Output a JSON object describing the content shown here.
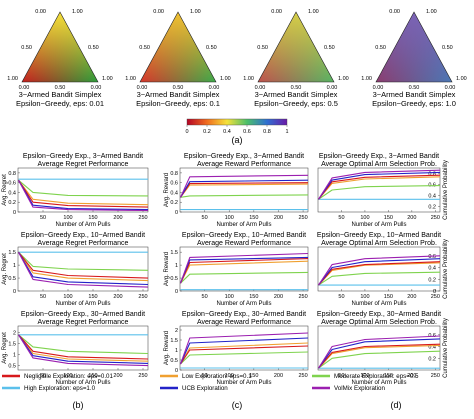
{
  "colors": {
    "eps_001": "#d7191c",
    "eps_01": "#f0a030",
    "eps_05": "#7fd34e",
    "eps_10": "#5bc0eb",
    "ucb": "#2323c8",
    "volmix": "#9b1fb0"
  },
  "simplex_panel": {
    "corner_labels": {
      "top_a": "0.00",
      "top_b": "1.00",
      "left_a": "1.00",
      "left_b": "0.00",
      "right_a": "0.00",
      "right_b": "1.00"
    },
    "tick_labels": [
      "0.50",
      "0.50",
      "0.50"
    ],
    "simplices": [
      {
        "title": "3−Armed Bandit Simplex",
        "subtitle": "Epsilon−Greedy, eps: 0.01",
        "colors": [
          "#f7e13a",
          "#c81e1e",
          "#2a9d3a"
        ]
      },
      {
        "title": "3−Armed Bandit Simplex",
        "subtitle": "Epsilon−Greedy, eps: 0.1",
        "colors": [
          "#f1c232",
          "#d9342b",
          "#3aaa4a"
        ]
      },
      {
        "title": "3−Armed Bandit Simplex",
        "subtitle": "Epsilon−Greedy, eps: 0.5",
        "colors": [
          "#d6cf48",
          "#c0504d",
          "#56b463"
        ]
      },
      {
        "title": "3−Armed Bandit Simplex",
        "subtitle": "Epsilon−Greedy, eps: 1.0",
        "colors": [
          "#7b63b6",
          "#8c3c6e",
          "#4a78b4"
        ]
      }
    ],
    "colorbar_ticks": [
      "0",
      "0.2",
      "0.4",
      "0.6",
      "0.8",
      "1"
    ],
    "panel_label": "(a)"
  },
  "panel_labels": {
    "b": "(b)",
    "c": "(c)",
    "d": "(d)"
  },
  "legend": [
    {
      "label": "Negligible Exploration: eps=0.01",
      "color_key": "eps_001"
    },
    {
      "label": "Low Exploration: eps=0.1",
      "color_key": "eps_01"
    },
    {
      "label": "Moderate Exploration: eps=0.5",
      "color_key": "eps_05"
    },
    {
      "label": "High Exploration: eps=1.0",
      "color_key": "eps_10"
    },
    {
      "label": "UCB Exploration",
      "color_key": "ucb"
    },
    {
      "label": "VolMix Exploration",
      "color_key": "volmix"
    }
  ],
  "chart_data": [
    {
      "type": "line",
      "title": "Epsilon−Greedy Exp., 3−Armed Bandit",
      "subtitle": "Average Regret Performance",
      "xlabel": "Number of Arm Pulls",
      "ylabel": "Avg. Regret",
      "xlim": [
        0,
        260
      ],
      "ylim": [
        0,
        0.9
      ],
      "xticks": [
        "50",
        "100",
        "150",
        "200",
        "250"
      ],
      "yticks": [
        "0",
        "0.2",
        "0.4",
        "0.6",
        "0.8"
      ],
      "series": [
        {
          "color_key": "eps_10",
          "x": [
            1,
            260
          ],
          "y": [
            0.67,
            0.67
          ]
        },
        {
          "color_key": "eps_05",
          "x": [
            1,
            30,
            100,
            260
          ],
          "y": [
            0.65,
            0.4,
            0.34,
            0.33
          ]
        },
        {
          "color_key": "eps_01",
          "x": [
            1,
            30,
            100,
            260
          ],
          "y": [
            0.65,
            0.26,
            0.18,
            0.15
          ]
        },
        {
          "color_key": "eps_001",
          "x": [
            1,
            30,
            100,
            260
          ],
          "y": [
            0.65,
            0.2,
            0.13,
            0.1
          ]
        },
        {
          "color_key": "ucb",
          "x": [
            1,
            30,
            100,
            260
          ],
          "y": [
            0.65,
            0.14,
            0.07,
            0.05
          ]
        },
        {
          "color_key": "volmix",
          "x": [
            1,
            30,
            100,
            260
          ],
          "y": [
            0.65,
            0.1,
            0.05,
            0.03
          ]
        }
      ]
    },
    {
      "type": "line",
      "title": "Epsilon−Greedy Exp., 3−Armed Bandit",
      "subtitle": "Average Reward Performance",
      "xlabel": "Number of Arm Pulls",
      "ylabel": "Avg. Reward",
      "xlim": [
        0,
        260
      ],
      "ylim": [
        0,
        0.9
      ],
      "xticks": [
        "50",
        "100",
        "150",
        "200",
        "250"
      ],
      "yticks": [
        "0",
        "0.2",
        "0.4",
        "0.6",
        "0.8"
      ],
      "series": [
        {
          "color_key": "eps_10",
          "x": [
            1,
            260
          ],
          "y": [
            0.05,
            0.05
          ]
        },
        {
          "color_key": "eps_05",
          "x": [
            1,
            20,
            260
          ],
          "y": [
            0.3,
            0.33,
            0.35
          ]
        },
        {
          "color_key": "eps_01",
          "x": [
            1,
            20,
            260
          ],
          "y": [
            0.3,
            0.55,
            0.57
          ]
        },
        {
          "color_key": "eps_001",
          "x": [
            1,
            20,
            260
          ],
          "y": [
            0.3,
            0.58,
            0.6
          ]
        },
        {
          "color_key": "ucb",
          "x": [
            1,
            20,
            260
          ],
          "y": [
            0.3,
            0.62,
            0.65
          ]
        },
        {
          "color_key": "volmix",
          "x": [
            1,
            20,
            260
          ],
          "y": [
            0.3,
            0.72,
            0.75
          ]
        }
      ]
    },
    {
      "type": "line",
      "title": "Epsilon−Greedy Exp., 3−Armed Bandit",
      "subtitle": "Average Optimal Arm Selection Prob.",
      "xlabel": "Number of Arm Pulls",
      "ylabel": "Cumulative Probability",
      "xlim": [
        0,
        260
      ],
      "ylim": [
        0.1,
        0.9
      ],
      "xticks": [
        "50",
        "100",
        "150",
        "200",
        "250"
      ],
      "yticks": [
        "0.2",
        "0.4",
        "0.6",
        "0.8"
      ],
      "series": [
        {
          "color_key": "eps_10",
          "x": [
            1,
            260
          ],
          "y": [
            0.33,
            0.33
          ]
        },
        {
          "color_key": "eps_05",
          "x": [
            1,
            30,
            100,
            260
          ],
          "y": [
            0.33,
            0.5,
            0.56,
            0.58
          ]
        },
        {
          "color_key": "eps_01",
          "x": [
            1,
            30,
            100,
            260
          ],
          "y": [
            0.33,
            0.62,
            0.7,
            0.74
          ]
        },
        {
          "color_key": "eps_001",
          "x": [
            1,
            30,
            100,
            260
          ],
          "y": [
            0.33,
            0.65,
            0.73,
            0.77
          ]
        },
        {
          "color_key": "ucb",
          "x": [
            1,
            30,
            100,
            260
          ],
          "y": [
            0.33,
            0.68,
            0.78,
            0.82
          ]
        },
        {
          "color_key": "volmix",
          "x": [
            1,
            30,
            100,
            260
          ],
          "y": [
            0.33,
            0.72,
            0.82,
            0.86
          ]
        }
      ]
    },
    {
      "type": "line",
      "title": "Epsilon−Greedy Exp., 10−Armed Bandit",
      "subtitle": "Average Regret Performance",
      "xlabel": "Number of Arm Pulls",
      "ylabel": "Avg. Regret",
      "xlim": [
        0,
        260
      ],
      "ylim": [
        0,
        1.7
      ],
      "xticks": [
        "50",
        "100",
        "150",
        "200",
        "250"
      ],
      "yticks": [
        "0",
        "0.5",
        "1",
        "1.5"
      ],
      "series": [
        {
          "color_key": "eps_10",
          "x": [
            1,
            260
          ],
          "y": [
            1.5,
            1.5
          ]
        },
        {
          "color_key": "eps_05",
          "x": [
            1,
            30,
            100,
            260
          ],
          "y": [
            1.5,
            0.95,
            0.85,
            0.8
          ]
        },
        {
          "color_key": "eps_01",
          "x": [
            1,
            30,
            100,
            260
          ],
          "y": [
            1.5,
            0.7,
            0.5,
            0.4
          ]
        },
        {
          "color_key": "eps_001",
          "x": [
            1,
            30,
            100,
            260
          ],
          "y": [
            1.5,
            0.8,
            0.6,
            0.5
          ]
        },
        {
          "color_key": "ucb",
          "x": [
            1,
            30,
            100,
            260
          ],
          "y": [
            1.5,
            0.55,
            0.35,
            0.25
          ]
        },
        {
          "color_key": "volmix",
          "x": [
            1,
            30,
            100,
            260
          ],
          "y": [
            1.5,
            0.45,
            0.25,
            0.15
          ]
        }
      ]
    },
    {
      "type": "line",
      "title": "Epsilon−Greedy Exp., 10−Armed Bandit",
      "subtitle": "Average Reward Performance",
      "xlabel": "Number of Arm Pulls",
      "ylabel": "Avg. Reward",
      "xlim": [
        0,
        260
      ],
      "ylim": [
        0,
        1.7
      ],
      "xticks": [
        "50",
        "100",
        "150",
        "200",
        "250"
      ],
      "yticks": [
        "0",
        "0.5",
        "1",
        "1.5"
      ],
      "series": [
        {
          "color_key": "eps_10",
          "x": [
            1,
            260
          ],
          "y": [
            0.05,
            0.05
          ]
        },
        {
          "color_key": "eps_05",
          "x": [
            1,
            20,
            260
          ],
          "y": [
            0.3,
            0.65,
            0.72
          ]
        },
        {
          "color_key": "eps_01",
          "x": [
            1,
            20,
            260
          ],
          "y": [
            0.3,
            1.0,
            1.15
          ]
        },
        {
          "color_key": "eps_001",
          "x": [
            1,
            20,
            260
          ],
          "y": [
            0.3,
            1.1,
            1.25
          ]
        },
        {
          "color_key": "ucb",
          "x": [
            1,
            20,
            260
          ],
          "y": [
            0.3,
            1.2,
            1.3
          ]
        },
        {
          "color_key": "volmix",
          "x": [
            1,
            20,
            260
          ],
          "y": [
            0.3,
            1.3,
            1.45
          ]
        }
      ]
    },
    {
      "type": "line",
      "title": "Epsilon−Greedy Exp., 10−Armed Bandit",
      "subtitle": "Average Optimal Arm Selection Prob.",
      "xlabel": "Number of Arm Pulls",
      "ylabel": "Cumulative Probability",
      "xlim": [
        0,
        260
      ],
      "ylim": [
        0,
        0.75
      ],
      "xticks": [
        "50",
        "100",
        "150",
        "200",
        "250"
      ],
      "yticks": [
        "0",
        "0.2",
        "0.4",
        "0.6"
      ],
      "series": [
        {
          "color_key": "eps_10",
          "x": [
            1,
            260
          ],
          "y": [
            0.1,
            0.1
          ]
        },
        {
          "color_key": "eps_05",
          "x": [
            1,
            30,
            100,
            260
          ],
          "y": [
            0.1,
            0.25,
            0.3,
            0.32
          ]
        },
        {
          "color_key": "eps_01",
          "x": [
            1,
            30,
            100,
            260
          ],
          "y": [
            0.1,
            0.35,
            0.44,
            0.48
          ]
        },
        {
          "color_key": "eps_001",
          "x": [
            1,
            30,
            100,
            260
          ],
          "y": [
            0.1,
            0.37,
            0.45,
            0.5
          ]
        },
        {
          "color_key": "ucb",
          "x": [
            1,
            30,
            100,
            260
          ],
          "y": [
            0.1,
            0.4,
            0.5,
            0.55
          ]
        },
        {
          "color_key": "volmix",
          "x": [
            1,
            30,
            100,
            260
          ],
          "y": [
            0.1,
            0.45,
            0.55,
            0.6
          ]
        }
      ]
    },
    {
      "type": "line",
      "title": "Epsilon−Greedy Exp., 30−Armed Bandit",
      "subtitle": "Average Regret Performance",
      "xlabel": "Number of Arm Pulls",
      "ylabel": "Avg. Regret",
      "xlim": [
        0,
        260
      ],
      "ylim": [
        0.3,
        2.3
      ],
      "xticks": [
        "50",
        "100",
        "150",
        "200",
        "250"
      ],
      "yticks": [
        "0.5",
        "1",
        "1.5",
        "2"
      ],
      "series": [
        {
          "color_key": "eps_10",
          "x": [
            1,
            260
          ],
          "y": [
            1.9,
            1.9
          ]
        },
        {
          "color_key": "eps_05",
          "x": [
            1,
            30,
            100,
            260
          ],
          "y": [
            1.9,
            1.35,
            1.15,
            1.05
          ]
        },
        {
          "color_key": "eps_01",
          "x": [
            1,
            30,
            100,
            260
          ],
          "y": [
            1.9,
            1.05,
            0.8,
            0.7
          ]
        },
        {
          "color_key": "eps_001",
          "x": [
            1,
            30,
            100,
            260
          ],
          "y": [
            1.9,
            1.15,
            0.9,
            0.8
          ]
        },
        {
          "color_key": "ucb",
          "x": [
            1,
            30,
            100,
            260
          ],
          "y": [
            1.9,
            0.95,
            0.7,
            0.6
          ]
        },
        {
          "color_key": "volmix",
          "x": [
            1,
            30,
            100,
            260
          ],
          "y": [
            1.9,
            0.85,
            0.6,
            0.5
          ]
        }
      ]
    },
    {
      "type": "line",
      "title": "Epsilon−Greedy Exp., 30−Armed Bandit",
      "subtitle": "Average Reward Performance",
      "xlabel": "Number of Arm Pulls",
      "ylabel": "Avg. Reward",
      "xlim": [
        0,
        260
      ],
      "ylim": [
        0,
        2.2
      ],
      "xticks": [
        "50",
        "100",
        "150",
        "200",
        "250"
      ],
      "yticks": [
        "0",
        "0.5",
        "1",
        "1.5",
        "2"
      ],
      "series": [
        {
          "color_key": "eps_10",
          "x": [
            1,
            260
          ],
          "y": [
            0.1,
            0.1
          ]
        },
        {
          "color_key": "eps_05",
          "x": [
            1,
            20,
            260
          ],
          "y": [
            0.3,
            0.75,
            0.9
          ]
        },
        {
          "color_key": "eps_01",
          "x": [
            1,
            20,
            260
          ],
          "y": [
            0.3,
            1.1,
            1.35
          ]
        },
        {
          "color_key": "eps_001",
          "x": [
            1,
            20,
            260
          ],
          "y": [
            0.3,
            1.0,
            1.2
          ]
        },
        {
          "color_key": "ucb",
          "x": [
            1,
            20,
            260
          ],
          "y": [
            0.3,
            1.35,
            1.6
          ]
        },
        {
          "color_key": "volmix",
          "x": [
            1,
            20,
            260
          ],
          "y": [
            0.3,
            1.6,
            1.85
          ]
        }
      ]
    },
    {
      "type": "line",
      "title": "Epsilon−Greedy Exp., 30−Armed Bandit",
      "subtitle": "Average Optimal Arm Selection Prob.",
      "xlabel": "Number of Arm Pulls",
      "ylabel": "Cumulative Probability",
      "xlim": [
        0,
        260
      ],
      "ylim": [
        0,
        0.75
      ],
      "xticks": [
        "50",
        "100",
        "150",
        "200",
        "250"
      ],
      "yticks": [
        "0.2",
        "0.4",
        "0.6"
      ],
      "series": [
        {
          "color_key": "eps_10",
          "x": [
            1,
            260
          ],
          "y": [
            0.03,
            0.03
          ]
        },
        {
          "color_key": "eps_05",
          "x": [
            1,
            30,
            100,
            260
          ],
          "y": [
            0.03,
            0.2,
            0.28,
            0.32
          ]
        },
        {
          "color_key": "eps_01",
          "x": [
            1,
            30,
            100,
            260
          ],
          "y": [
            0.03,
            0.28,
            0.38,
            0.42
          ]
        },
        {
          "color_key": "eps_001",
          "x": [
            1,
            30,
            100,
            260
          ],
          "y": [
            0.03,
            0.3,
            0.4,
            0.44
          ]
        },
        {
          "color_key": "ucb",
          "x": [
            1,
            30,
            100,
            260
          ],
          "y": [
            0.03,
            0.35,
            0.48,
            0.53
          ]
        },
        {
          "color_key": "volmix",
          "x": [
            1,
            30,
            100,
            260
          ],
          "y": [
            0.03,
            0.4,
            0.52,
            0.58
          ]
        }
      ]
    }
  ]
}
